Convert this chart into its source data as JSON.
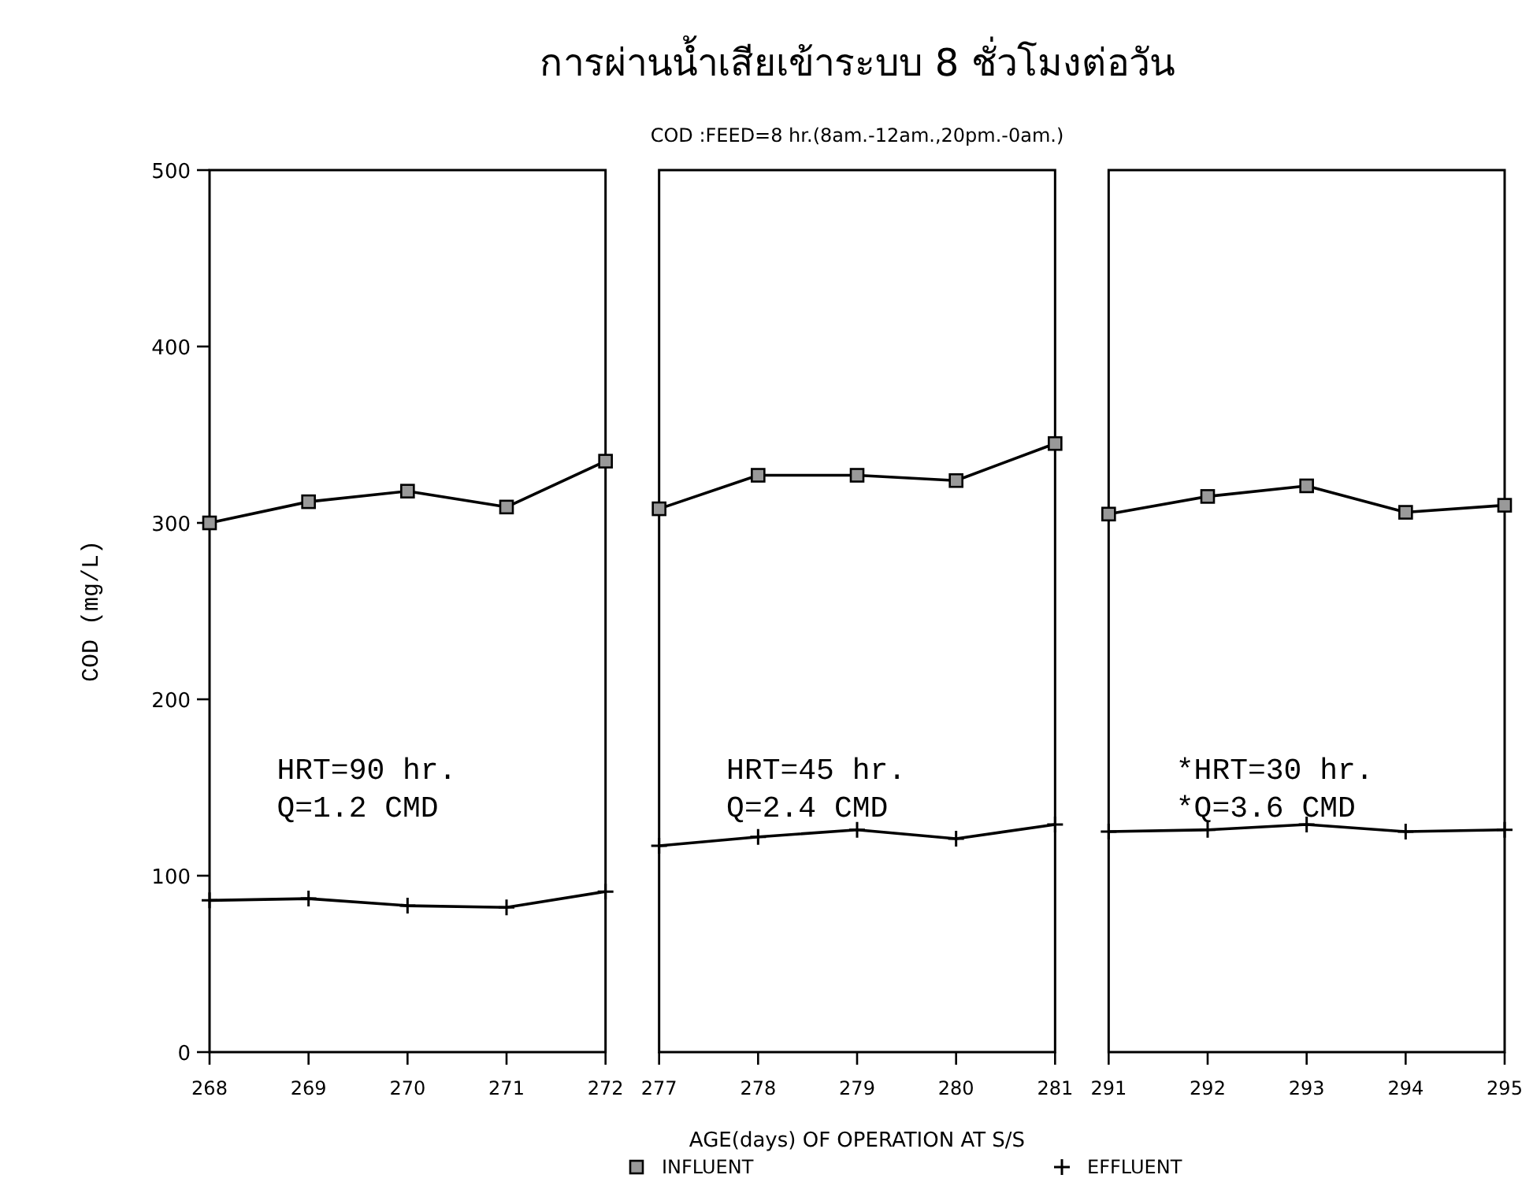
{
  "chart_data": [
    {
      "type": "line",
      "ylabel": "COD (mg/L)",
      "categories": [
        "268",
        "269",
        "270",
        "271",
        "272"
      ],
      "series": [
        {
          "color": "#000000",
          "marker": "square",
          "values": [
            300,
            312,
            318,
            309,
            335
          ]
        },
        {
          "color": "#000000",
          "marker": "cross",
          "values": [
            86,
            87,
            83,
            82,
            91
          ]
        }
      ],
      "ylim": [
        0,
        500
      ],
      "yticks": [
        0,
        100,
        200,
        300,
        400,
        500
      ],
      "annotations": [
        "HRT=90 hr.",
        "Q=1.2 CMD"
      ]
    },
    {
      "type": "line",
      "title": "การผ่านน้ำเสียเข้าระบบ 8 ชั่วโมงต่อวัน",
      "subtitle": "COD :FEED=8 hr.(8am.-12am.,20pm.-0am.)",
      "xlabel": "AGE(days) OF OPERATION AT S/S",
      "categories": [
        "277",
        "278",
        "279",
        "280",
        "281"
      ],
      "series": [
        {
          "name": "INFLUENT",
          "color": "#000000",
          "marker": "square",
          "values": [
            308,
            327,
            327,
            324,
            345
          ]
        },
        {
          "name": "EFFLUENT",
          "color": "#000000",
          "marker": "cross",
          "values": [
            117,
            122,
            126,
            121,
            129
          ]
        }
      ],
      "ylim": [
        0,
        500
      ],
      "tick_labels": "x",
      "legend": "bottom",
      "annotations": [
        "HRT=45 hr.",
        "Q=2.4 CMD"
      ]
    },
    {
      "type": "line",
      "categories": [
        "291",
        "292",
        "293",
        "294",
        "295"
      ],
      "series": [
        {
          "color": "#000000",
          "marker": "square",
          "values": [
            305,
            315,
            321,
            306,
            310
          ]
        },
        {
          "color": "#000000",
          "marker": "cross",
          "values": [
            125,
            126,
            129,
            125,
            126
          ]
        }
      ],
      "ylim": [
        0,
        500
      ],
      "tick_labels": "x",
      "annotations": [
        "*HRT=30 hr.",
        "*Q=3.6 CMD"
      ]
    }
  ]
}
